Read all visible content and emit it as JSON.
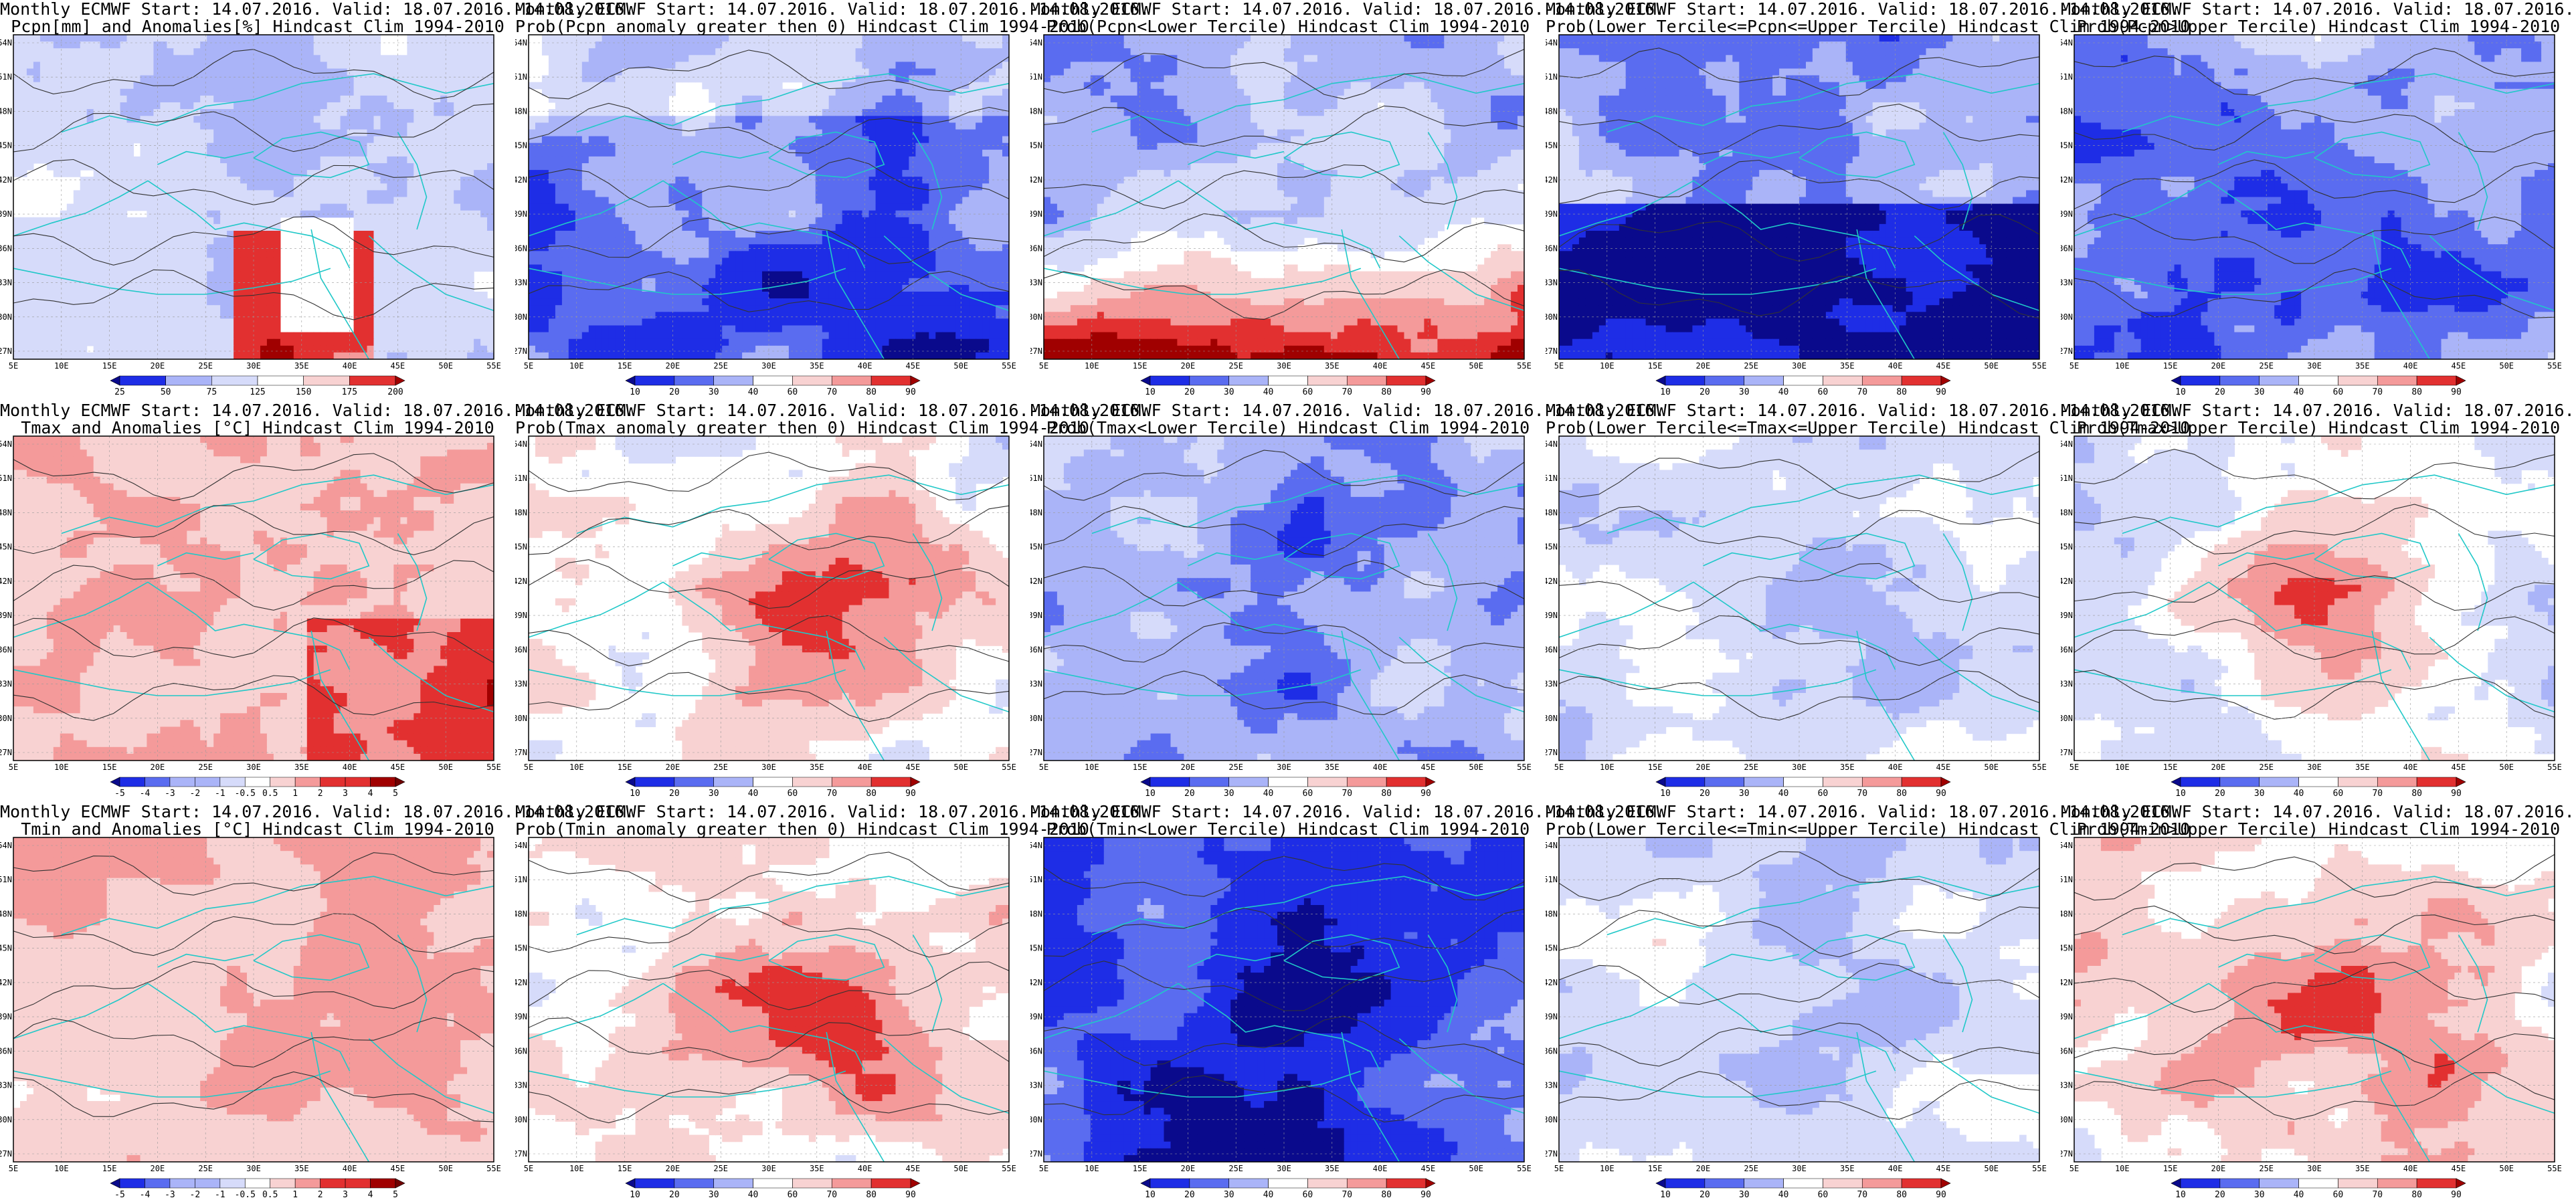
{
  "figure": {
    "title_line1": "Monthly ECMWF Start: 14.07.2016. Valid: 18.07.2016.-14.08.2016.",
    "lon_labels": [
      "5E",
      "10E",
      "15E",
      "20E",
      "25E",
      "30E",
      "35E",
      "40E",
      "45E",
      "50E",
      "55E"
    ],
    "lat_labels": [
      "54N",
      "51N",
      "48N",
      "45N",
      "42N",
      "39N",
      "36N",
      "33N",
      "30N",
      "27N"
    ]
  },
  "colors": {
    "deep_blue": "#0a0a8c",
    "blue": "#1e2de6",
    "mid_blue": "#5a6cf0",
    "light_blue": "#aab4f8",
    "pale_blue": "#d6dbfa",
    "white": "#ffffff",
    "pale_red": "#f8d2d2",
    "light_red": "#f49a9a",
    "red": "#e23030",
    "dark_red": "#a00000",
    "coast": "#20c8c8",
    "contour": "#333333"
  },
  "colorbars": {
    "precip": [
      "25",
      "50",
      "75",
      "125",
      "150",
      "175",
      "200"
    ],
    "prob": [
      "10",
      "20",
      "30",
      "40",
      "60",
      "70",
      "80",
      "90"
    ],
    "anom": [
      "-5",
      "-4",
      "-3",
      "-2",
      "-1",
      "-0.5",
      "0.5",
      "1",
      "2",
      "3",
      "4",
      "5"
    ]
  },
  "panels": [
    {
      "id": "pcpn-anom",
      "title2": "Pcpn[mm] and Anomalies[%] Hindcast Clim 1994-2010",
      "bar": "precip",
      "field": "pcpn_anom"
    },
    {
      "id": "pcpn-gt0",
      "title2": "Prob(Pcpn anomaly greater then 0) Hindcast Clim 1994-2010",
      "bar": "prob",
      "field": "pcpn_gt0"
    },
    {
      "id": "pcpn-low",
      "title2": "Prob(Pcpn<Lower Tercile) Hindcast Clim 1994-2010",
      "bar": "prob",
      "field": "pcpn_low"
    },
    {
      "id": "pcpn-mid",
      "title2": "Prob(Lower Tercile<=Pcpn<=Upper Tercile) Hindcast Clim 1994-2010",
      "bar": "prob",
      "field": "pcpn_mid"
    },
    {
      "id": "pcpn-up",
      "title2": "Prob(Pcpn>Upper Tercile) Hindcast Clim 1994-2010",
      "bar": "prob",
      "field": "pcpn_up"
    },
    {
      "id": "tmax-anom",
      "title2": "Tmax and Anomalies [°C] Hindcast Clim 1994-2010",
      "bar": "anom",
      "field": "tmax_anom"
    },
    {
      "id": "tmax-gt0",
      "title2": "Prob(Tmax anomaly greater then 0) Hindcast Clim 1994-2010",
      "bar": "prob",
      "field": "tmax_gt0"
    },
    {
      "id": "tmax-low",
      "title2": "Prob(Tmax<Lower Tercile) Hindcast Clim 1994-2010",
      "bar": "prob",
      "field": "tmax_low"
    },
    {
      "id": "tmax-mid",
      "title2": "Prob(Lower Tercile<=Tmax<=Upper Tercile) Hindcast Clim 1994-2010",
      "bar": "prob",
      "field": "tmax_mid"
    },
    {
      "id": "tmax-up",
      "title2": "Prob(Tmax>Upper Tercile) Hindcast Clim 1994-2010",
      "bar": "prob",
      "field": "tmax_up"
    },
    {
      "id": "tmin-anom",
      "title2": "Tmin and Anomalies [°C] Hindcast Clim 1994-2010",
      "bar": "anom",
      "field": "tmin_anom"
    },
    {
      "id": "tmin-gt0",
      "title2": "Prob(Tmin anomaly greater then 0) Hindcast Clim 1994-2010",
      "bar": "prob",
      "field": "tmin_gt0"
    },
    {
      "id": "tmin-low",
      "title2": "Prob(Tmin<Lower Tercile) Hindcast Clim 1994-2010",
      "bar": "prob",
      "field": "tmin_low"
    },
    {
      "id": "tmin-mid",
      "title2": "Prob(Lower Tercile<=Tmin<=Upper Tercile) Hindcast Clim 1994-2010",
      "bar": "prob",
      "field": "tmin_mid"
    },
    {
      "id": "tmin-up",
      "title2": "Prob(Tmin>Upper Tercile) Hindcast Clim 1994-2010",
      "bar": "prob",
      "field": "tmin_up"
    }
  ]
}
